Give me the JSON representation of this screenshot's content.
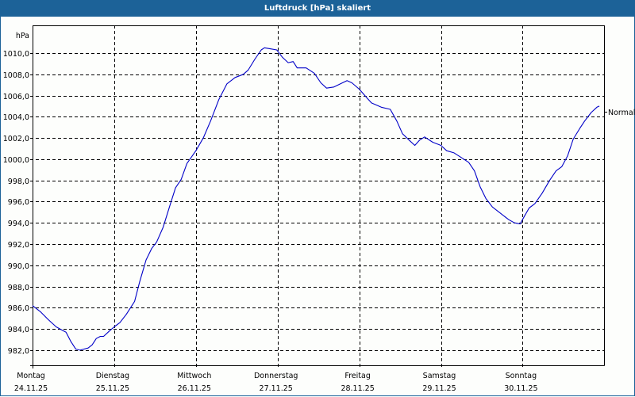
{
  "window": {
    "title": "Luftdruck [hPa] skaliert",
    "title_bar_color": "#1c6298"
  },
  "chart_data": {
    "type": "line",
    "title": "Luftdruck [hPa] skaliert",
    "xlabel": "",
    "ylabel": "hPa",
    "ylim": [
      980.6,
      1011.9
    ],
    "grid": true,
    "y_ticks": [
      "1010,0",
      "1008,0",
      "1006,0",
      "1004,0",
      "1002,0",
      "1000,0",
      "998,0",
      "996,0",
      "994,0",
      "992,0",
      "990,0",
      "988,0",
      "986,0",
      "984,0",
      "982,0"
    ],
    "y_tick_values": [
      1010,
      1008,
      1006,
      1004,
      1002,
      1000,
      998,
      996,
      994,
      992,
      990,
      988,
      986,
      984,
      982
    ],
    "x_ticks": [
      {
        "day": "Montag",
        "date": "24.11.25"
      },
      {
        "day": "Dienstag",
        "date": "25.11.25"
      },
      {
        "day": "Mittwoch",
        "date": "26.11.25"
      },
      {
        "day": "Donnerstag",
        "date": "27.11.25"
      },
      {
        "day": "Freitag",
        "date": "28.11.25"
      },
      {
        "day": "Samstag",
        "date": "29.11.25"
      },
      {
        "day": "Sonntag",
        "date": "30.11.25"
      }
    ],
    "reference_marker": {
      "label": "Normal",
      "value": 1004.5
    },
    "series": [
      {
        "name": "Luftdruck",
        "color": "#0000c8",
        "x_days": [
          0.0,
          0.1,
          0.19,
          0.29,
          0.36,
          0.41,
          0.47,
          0.53,
          0.58,
          0.68,
          0.73,
          0.78,
          0.83,
          0.87,
          0.94,
          1.0,
          1.07,
          1.15,
          1.25,
          1.31,
          1.39,
          1.46,
          1.52,
          1.6,
          1.68,
          1.75,
          1.82,
          1.89,
          2.0,
          2.09,
          2.18,
          2.28,
          2.38,
          2.48,
          2.58,
          2.64,
          2.72,
          2.8,
          2.84,
          2.91,
          2.99,
          3.06,
          3.13,
          3.19,
          3.24,
          3.35,
          3.45,
          3.53,
          3.6,
          3.69,
          3.77,
          3.85,
          3.91,
          4.0,
          4.08,
          4.15,
          4.27,
          4.38,
          4.46,
          4.53,
          4.61,
          4.68,
          4.74,
          4.8,
          4.9,
          5.0,
          5.07,
          5.16,
          5.24,
          5.34,
          5.41,
          5.48,
          5.55,
          5.63,
          5.73,
          5.83,
          5.9,
          5.97,
          6.02,
          6.08,
          6.15,
          6.24,
          6.33,
          6.41,
          6.48,
          6.55,
          6.62,
          6.7,
          6.76,
          6.84,
          6.91,
          6.94
        ],
        "values": [
          986.2,
          985.6,
          984.9,
          984.2,
          983.9,
          983.7,
          982.8,
          982.1,
          982.0,
          982.2,
          982.5,
          983.1,
          983.3,
          983.3,
          983.8,
          984.2,
          984.6,
          985.4,
          986.6,
          988.4,
          990.5,
          991.6,
          992.2,
          993.6,
          995.6,
          997.3,
          998.1,
          999.6,
          1000.8,
          1002.0,
          1003.6,
          1005.6,
          1007.1,
          1007.7,
          1008.0,
          1008.4,
          1009.4,
          1010.3,
          1010.5,
          1010.4,
          1010.3,
          1009.6,
          1009.1,
          1009.2,
          1008.6,
          1008.6,
          1008.1,
          1007.2,
          1006.7,
          1006.8,
          1007.1,
          1007.4,
          1007.2,
          1006.6,
          1005.9,
          1005.3,
          1004.9,
          1004.7,
          1003.6,
          1002.4,
          1001.8,
          1001.3,
          1001.8,
          1002.1,
          1001.6,
          1001.3,
          1000.8,
          1000.6,
          1000.2,
          999.7,
          998.9,
          997.4,
          996.3,
          995.5,
          994.9,
          994.3,
          994.0,
          993.9,
          994.6,
          995.4,
          995.8,
          996.8,
          998.0,
          998.9,
          999.3,
          1000.3,
          1001.9,
          1002.9,
          1003.6,
          1004.4,
          1004.9,
          1005.0
        ]
      }
    ]
  }
}
